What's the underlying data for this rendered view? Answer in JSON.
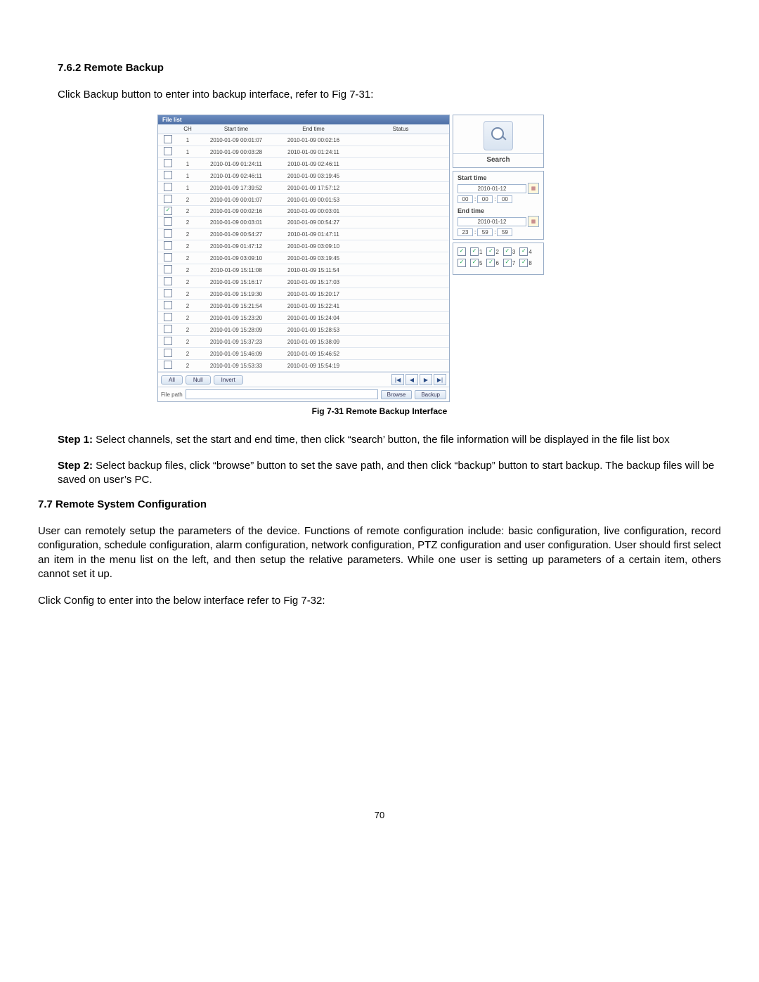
{
  "section_heading": "7.6.2 Remote Backup",
  "intro": "Click Backup button to enter into backup interface, refer to Fig 7-31:",
  "caption": "Fig 7-31 Remote Backup Interface",
  "step1_label": "Step 1:",
  "step1_text": " Select channels, set the start and end time, then click “search’ button, the file information will be displayed in the file list box",
  "step2_label": "Step 2:",
  "step2_text": " Select backup files, click “browse” button to set the save path, and then click “backup” button to start backup. The backup files will be saved on user’s PC.",
  "section2_heading": "7.7 Remote System Configuration",
  "section2_para": "User can remotely setup the parameters of the device. Functions of remote configuration include: basic configuration, live configuration, record configuration, schedule configuration, alarm configuration, network configuration, PTZ configuration and user configuration. User should first select an item in the menu list on the left, and then setup the relative parameters. While one user is setting up parameters of a certain item, others cannot set it up.",
  "section2_line": "Click Config to enter into the below interface refer to Fig 7-32:",
  "page_number": "70",
  "shot": {
    "title": "File list",
    "headers": {
      "ch": "CH",
      "start": "Start time",
      "end": "End time",
      "status": "Status"
    },
    "rows": [
      {
        "chk": false,
        "ch": "1",
        "s": "2010-01-09 00:01:07",
        "e": "2010-01-09 00:02:16"
      },
      {
        "chk": false,
        "ch": "1",
        "s": "2010-01-09 00:03:28",
        "e": "2010-01-09 01:24:11"
      },
      {
        "chk": false,
        "ch": "1",
        "s": "2010-01-09 01:24:11",
        "e": "2010-01-09 02:46:11"
      },
      {
        "chk": false,
        "ch": "1",
        "s": "2010-01-09 02:46:11",
        "e": "2010-01-09 03:19:45"
      },
      {
        "chk": false,
        "ch": "1",
        "s": "2010-01-09 17:39:52",
        "e": "2010-01-09 17:57:12"
      },
      {
        "chk": false,
        "ch": "2",
        "s": "2010-01-09 00:01:07",
        "e": "2010-01-09 00:01:53"
      },
      {
        "chk": true,
        "ch": "2",
        "s": "2010-01-09 00:02:16",
        "e": "2010-01-09 00:03:01"
      },
      {
        "chk": false,
        "ch": "2",
        "s": "2010-01-09 00:03:01",
        "e": "2010-01-09 00:54:27"
      },
      {
        "chk": false,
        "ch": "2",
        "s": "2010-01-09 00:54:27",
        "e": "2010-01-09 01:47:11"
      },
      {
        "chk": false,
        "ch": "2",
        "s": "2010-01-09 01:47:12",
        "e": "2010-01-09 03:09:10"
      },
      {
        "chk": false,
        "ch": "2",
        "s": "2010-01-09 03:09:10",
        "e": "2010-01-09 03:19:45"
      },
      {
        "chk": false,
        "ch": "2",
        "s": "2010-01-09 15:11:08",
        "e": "2010-01-09 15:11:54"
      },
      {
        "chk": false,
        "ch": "2",
        "s": "2010-01-09 15:16:17",
        "e": "2010-01-09 15:17:03"
      },
      {
        "chk": false,
        "ch": "2",
        "s": "2010-01-09 15:19:30",
        "e": "2010-01-09 15:20:17"
      },
      {
        "chk": false,
        "ch": "2",
        "s": "2010-01-09 15:21:54",
        "e": "2010-01-09 15:22:41"
      },
      {
        "chk": false,
        "ch": "2",
        "s": "2010-01-09 15:23:20",
        "e": "2010-01-09 15:24:04"
      },
      {
        "chk": false,
        "ch": "2",
        "s": "2010-01-09 15:28:09",
        "e": "2010-01-09 15:28:53"
      },
      {
        "chk": false,
        "ch": "2",
        "s": "2010-01-09 15:37:23",
        "e": "2010-01-09 15:38:09"
      },
      {
        "chk": false,
        "ch": "2",
        "s": "2010-01-09 15:46:09",
        "e": "2010-01-09 15:46:52"
      },
      {
        "chk": false,
        "ch": "2",
        "s": "2010-01-09 15:53:33",
        "e": "2010-01-09 15:54:19"
      }
    ],
    "tabs": {
      "all": "All",
      "null": "Null",
      "invert": "Invert"
    },
    "pager": {
      "first": "|◀",
      "prev": "◀",
      "next": "▶",
      "last": "▶|"
    },
    "filepath_label": "File path",
    "browse": "Browse",
    "backup": "Backup",
    "search_label": "Search",
    "start_time_label": "Start time",
    "start_date": "2010-01-12",
    "start_h": "00",
    "start_m": "00",
    "start_s": "00",
    "end_time_label": "End time",
    "end_date": "2010-01-12",
    "end_h": "23",
    "end_m": "59",
    "end_s": "59",
    "channels": [
      "1",
      "2",
      "3",
      "4",
      "5",
      "6",
      "7",
      "8"
    ]
  }
}
